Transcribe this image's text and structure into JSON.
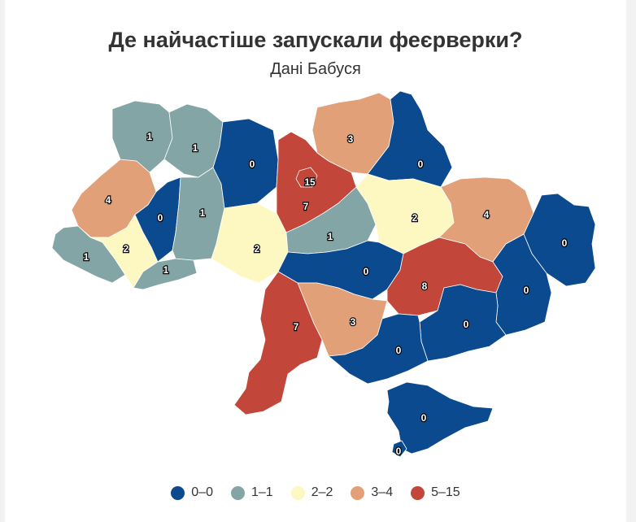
{
  "title": "Де найчастіше запускали феєрверки?",
  "subtitle": "Дані Бабуся",
  "legend": [
    {
      "label": "0–0",
      "color": "#0b4a8f"
    },
    {
      "label": "1–1",
      "color": "#84a5a5"
    },
    {
      "label": "2–2",
      "color": "#fdf8c1"
    },
    {
      "label": "3–4",
      "color": "#e2a079"
    },
    {
      "label": "5–15",
      "color": "#c3463a"
    }
  ],
  "regions": [
    {
      "key": "volyn",
      "value": "1"
    },
    {
      "key": "rivne",
      "value": "1"
    },
    {
      "key": "zhytomyr",
      "value": "0"
    },
    {
      "key": "kyiv_obl",
      "value": "7"
    },
    {
      "key": "kyiv_city",
      "value": "15"
    },
    {
      "key": "chernihiv",
      "value": "3"
    },
    {
      "key": "sumy",
      "value": "0"
    },
    {
      "key": "lviv",
      "value": "4"
    },
    {
      "key": "ternopil",
      "value": "0"
    },
    {
      "key": "khmelnytskyi",
      "value": "1"
    },
    {
      "key": "zakarpattia",
      "value": "1"
    },
    {
      "key": "ivano_frankivsk",
      "value": "2"
    },
    {
      "key": "chernivtsi",
      "value": "1"
    },
    {
      "key": "vinnytsia",
      "value": "2"
    },
    {
      "key": "cherkasy",
      "value": "1"
    },
    {
      "key": "poltava",
      "value": "2"
    },
    {
      "key": "kharkiv",
      "value": "4"
    },
    {
      "key": "kirovohrad",
      "value": "0"
    },
    {
      "key": "dnipro",
      "value": "8"
    },
    {
      "key": "luhansk",
      "value": "0"
    },
    {
      "key": "donetsk",
      "value": "0"
    },
    {
      "key": "zaporizhzhia",
      "value": "0"
    },
    {
      "key": "mykolaiv",
      "value": "3"
    },
    {
      "key": "odesa",
      "value": "7"
    },
    {
      "key": "kherson",
      "value": "0"
    },
    {
      "key": "crimea",
      "value": "0"
    },
    {
      "key": "sevastopol",
      "value": "0"
    }
  ]
}
